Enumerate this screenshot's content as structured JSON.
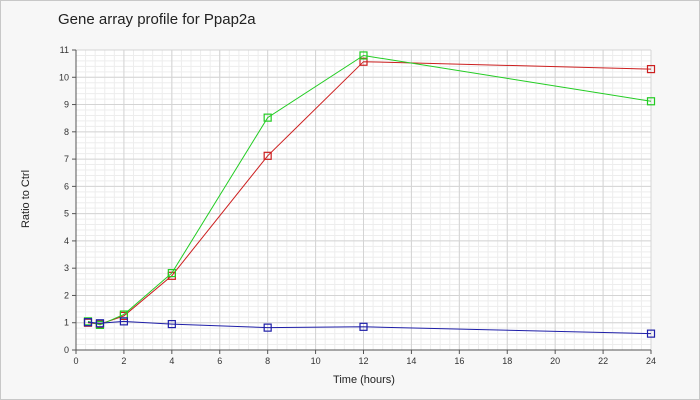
{
  "chart_data": {
    "type": "line",
    "title": "Gene array profile for Ppap2a",
    "xlabel": "Time (hours)",
    "ylabel": "Ratio to Ctrl",
    "xlim": [
      0,
      24
    ],
    "ylim": [
      0,
      11
    ],
    "xticks": [
      0,
      2,
      4,
      6,
      8,
      10,
      12,
      14,
      16,
      18,
      20,
      22,
      24
    ],
    "yticks": [
      0,
      1,
      2,
      3,
      4,
      5,
      6,
      7,
      8,
      9,
      10,
      11
    ],
    "grid": true,
    "marker": "square",
    "series": [
      {
        "color": "#cc1f1f",
        "x": [
          0.5,
          1,
          2,
          4,
          8,
          12,
          24
        ],
        "y": [
          1.0,
          0.95,
          1.25,
          2.72,
          7.12,
          10.57,
          10.3
        ]
      },
      {
        "color": "#22cc22",
        "x": [
          0.5,
          1,
          2,
          4,
          8,
          12,
          24
        ],
        "y": [
          1.05,
          0.92,
          1.3,
          2.82,
          8.52,
          10.8,
          9.12
        ]
      },
      {
        "color": "#1f1fa8",
        "x": [
          0.5,
          1,
          2,
          4,
          8,
          12,
          24
        ],
        "y": [
          1.02,
          0.98,
          1.05,
          0.95,
          0.82,
          0.85,
          0.6
        ]
      }
    ]
  }
}
